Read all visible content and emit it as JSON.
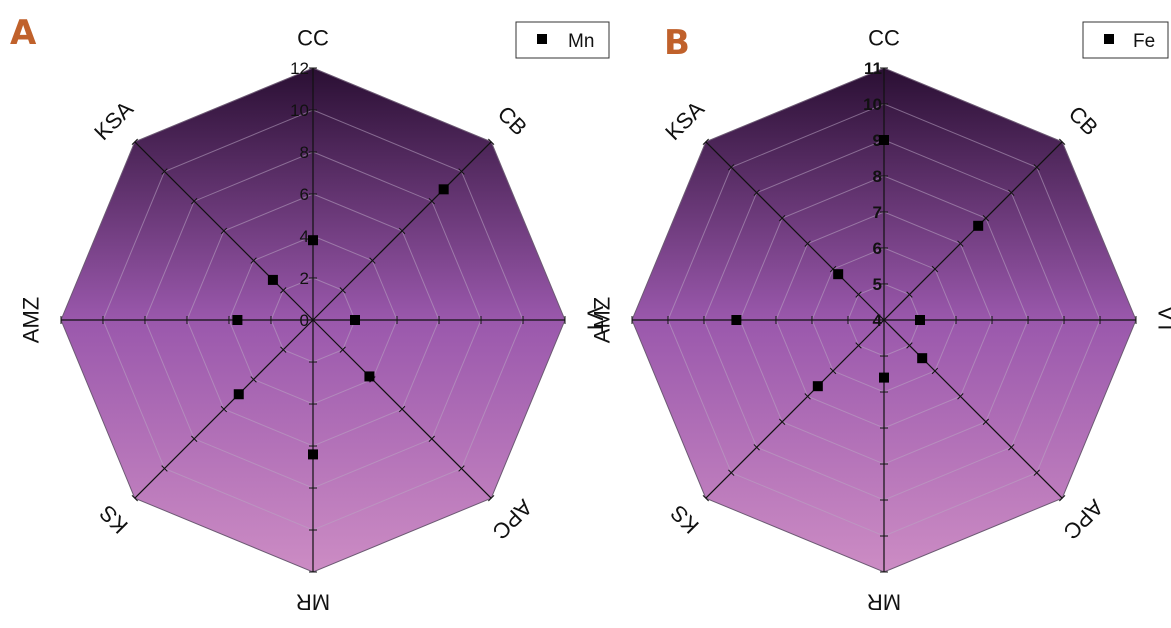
{
  "colors": {
    "panel_letter": "#c0612b",
    "fill_top": "#2a0f33",
    "fill_mid": "#9a58ac",
    "fill_bottom": "#cc8cc4",
    "marker": "#000000",
    "axis": "#111111",
    "grid": "#b9a6c2"
  },
  "chart_data": [
    {
      "type": "radar",
      "panel_label": "A",
      "categories": [
        "CC",
        "CB",
        "VT",
        "APC",
        "MR",
        "KS",
        "AMZ",
        "KSA"
      ],
      "series": [
        {
          "name": "Mn",
          "values": [
            3.8,
            8.8,
            2.0,
            3.8,
            6.4,
            5.0,
            3.6,
            2.7
          ]
        }
      ],
      "rlim": [
        0,
        12
      ],
      "ticks": [
        0,
        2,
        4,
        6,
        8,
        10,
        12
      ],
      "tick_labels": [
        "0",
        "2",
        "4",
        "6",
        "8",
        "10",
        "12"
      ],
      "grid": true,
      "legend_position": "top-right"
    },
    {
      "type": "radar",
      "panel_label": "B",
      "categories": [
        "CC",
        "CB",
        "VT",
        "APC",
        "MR",
        "KS",
        "AMZ",
        "KSA"
      ],
      "series": [
        {
          "name": "Fe",
          "values": [
            9.0,
            7.7,
            5.0,
            5.5,
            5.6,
            6.6,
            8.1,
            5.8
          ]
        }
      ],
      "rlim": [
        4,
        11
      ],
      "ticks": [
        4,
        5,
        6,
        7,
        8,
        9,
        10,
        11
      ],
      "tick_labels": [
        "4",
        "5",
        "6",
        "7",
        "8",
        "9",
        "10",
        "11"
      ],
      "grid": true,
      "legend_position": "top-right"
    }
  ]
}
